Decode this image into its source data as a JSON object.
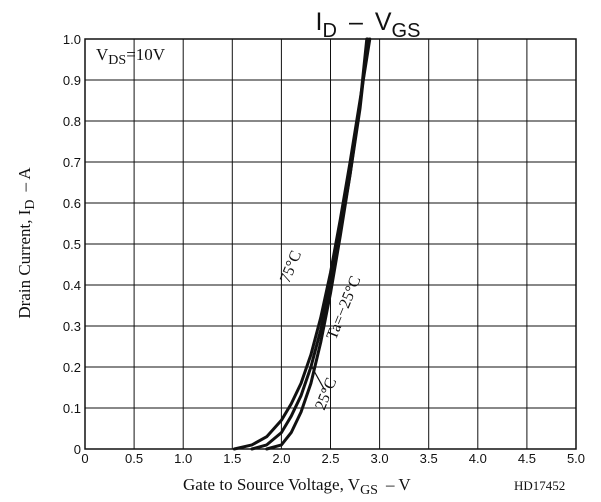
{
  "chart_data": {
    "type": "line",
    "title_main": "I",
    "title_main_sub": "D",
    "title_dash": "–",
    "title_v": "V",
    "title_v_sub": "GS",
    "condition_main": "V",
    "condition_sub": "DS",
    "condition_value": "=10V",
    "ylabel_main": "Drain Current, I",
    "ylabel_sub": "D",
    "ylabel_unit": "– A",
    "xlabel_main": "Gate to Source Voltage, V",
    "xlabel_sub": "GS",
    "xlabel_unit": "– V",
    "figure_code": "HD17452",
    "xlim": [
      0,
      5.0
    ],
    "ylim": [
      0,
      1.0
    ],
    "grid": true,
    "x_ticks": [
      {
        "value": 0,
        "label": "0"
      },
      {
        "value": 0.5,
        "label": "0.5"
      },
      {
        "value": 1.0,
        "label": "1.0"
      },
      {
        "value": 1.5,
        "label": "1.5"
      },
      {
        "value": 2.0,
        "label": "2.0"
      },
      {
        "value": 2.5,
        "label": "2.5"
      },
      {
        "value": 3.0,
        "label": "3.0"
      },
      {
        "value": 3.5,
        "label": "3.5"
      },
      {
        "value": 4.0,
        "label": "4.0"
      },
      {
        "value": 4.5,
        "label": "4.5"
      },
      {
        "value": 5.0,
        "label": "5.0"
      }
    ],
    "y_ticks": [
      {
        "value": 0,
        "label": "0"
      },
      {
        "value": 0.1,
        "label": "0.1"
      },
      {
        "value": 0.2,
        "label": "0.2"
      },
      {
        "value": 0.3,
        "label": "0.3"
      },
      {
        "value": 0.4,
        "label": "0.4"
      },
      {
        "value": 0.5,
        "label": "0.5"
      },
      {
        "value": 0.6,
        "label": "0.6"
      },
      {
        "value": 0.7,
        "label": "0.7"
      },
      {
        "value": 0.8,
        "label": "0.8"
      },
      {
        "value": 0.9,
        "label": "0.9"
      },
      {
        "value": 1.0,
        "label": "1.0"
      }
    ],
    "series": [
      {
        "name": "75°C",
        "x": [
          1.52,
          1.7,
          1.85,
          2.0,
          2.1,
          2.2,
          2.3,
          2.4,
          2.5,
          2.6,
          2.7,
          2.8,
          2.9
        ],
        "y": [
          0.0,
          0.01,
          0.03,
          0.07,
          0.11,
          0.16,
          0.23,
          0.32,
          0.43,
          0.56,
          0.7,
          0.85,
          1.0
        ]
      },
      {
        "name": "25°C",
        "x": [
          1.7,
          1.85,
          2.0,
          2.1,
          2.2,
          2.3,
          2.4,
          2.5,
          2.6,
          2.7,
          2.8,
          2.88
        ],
        "y": [
          0.0,
          0.01,
          0.04,
          0.08,
          0.13,
          0.2,
          0.29,
          0.4,
          0.53,
          0.67,
          0.83,
          1.0
        ]
      },
      {
        "name": "Ta=−25°C",
        "x": [
          1.85,
          2.0,
          2.1,
          2.2,
          2.3,
          2.4,
          2.5,
          2.6,
          2.7,
          2.8,
          2.87
        ],
        "y": [
          0.0,
          0.01,
          0.04,
          0.09,
          0.16,
          0.26,
          0.38,
          0.52,
          0.67,
          0.84,
          1.0
        ]
      }
    ],
    "annotations": [
      {
        "text": "75°C",
        "x": 2.14,
        "y": 0.44,
        "angle": -68
      },
      {
        "text": "Ta=−25°C",
        "x": 2.68,
        "y": 0.34,
        "angle": -68
      },
      {
        "text": "25°C",
        "x": 2.5,
        "y": 0.13,
        "angle": -68
      }
    ]
  }
}
